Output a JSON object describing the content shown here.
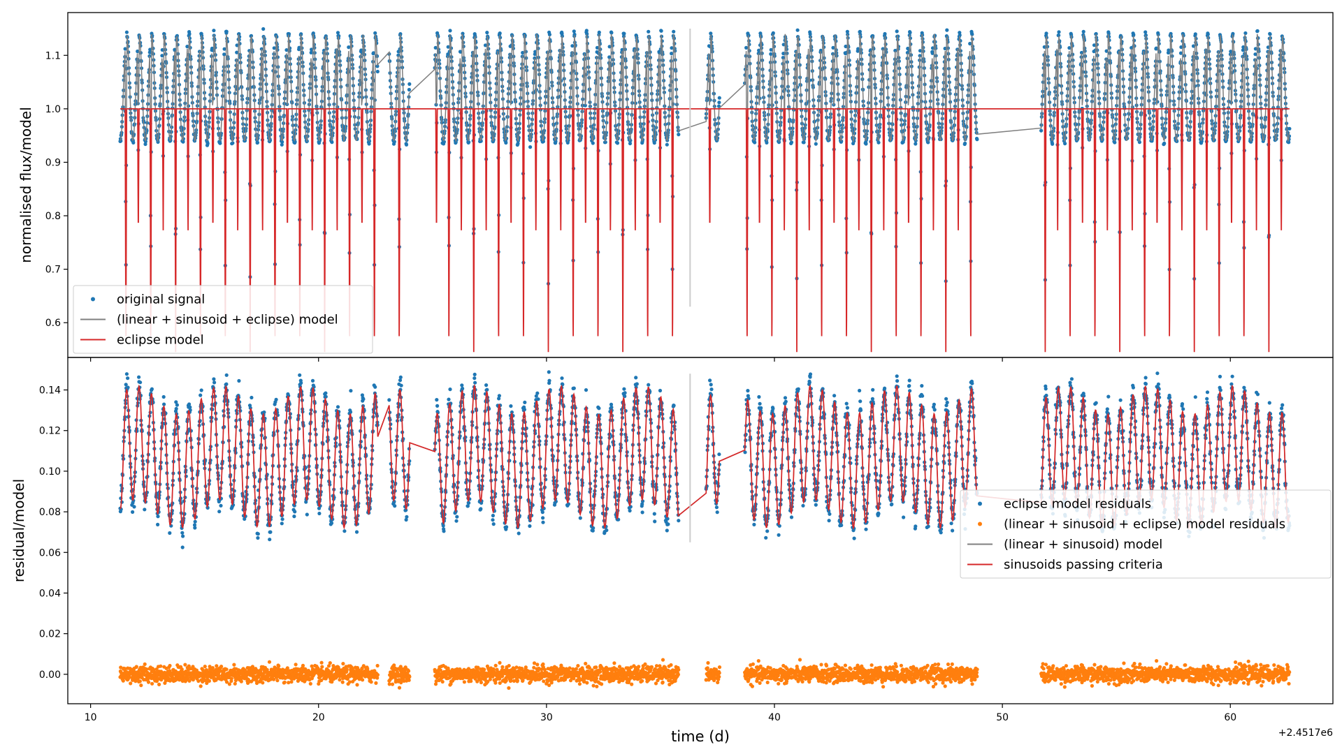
{
  "chart_data": [
    {
      "type": "line",
      "panel": "top",
      "xlabel": "",
      "ylabel": "normalised flux/model",
      "xlim": [
        9,
        64.5
      ],
      "ylim": [
        0.535,
        1.18
      ],
      "xticks": [
        10,
        20,
        30,
        40,
        50,
        60
      ],
      "xtick_labels": [
        "",
        "",
        "",
        "",
        "",
        ""
      ],
      "yticks": [
        0.6,
        0.7,
        0.8,
        0.9,
        1.0,
        1.1
      ],
      "ytick_labels": [
        "0.6",
        "0.7",
        "0.8",
        "0.9",
        "1.0",
        "1.1"
      ],
      "grid": false,
      "legend_position": "lower-left",
      "legend": [
        {
          "label": "original signal",
          "color": "#1f77b4",
          "marker": "dot"
        },
        {
          "label": "(linear + sinusoid + eclipse) model",
          "color": "#7f7f7f",
          "marker": "line"
        },
        {
          "label": "eclipse model",
          "color": "#d62728",
          "marker": "line"
        }
      ],
      "vline": {
        "x": 36.3,
        "y_range": [
          0.63,
          1.15
        ],
        "color": "#cccccc"
      },
      "segments": [
        [
          11.3,
          22.6
        ],
        [
          23.1,
          24.0
        ],
        [
          25.1,
          35.8
        ],
        [
          37.0,
          37.6
        ],
        [
          38.7,
          48.9
        ],
        [
          51.7,
          62.6
        ]
      ],
      "eclipse_period": 1.09,
      "eclipse_reference_time": 11.55,
      "secondary_eclipse_phase": 0.5,
      "primary_depth": 0.545,
      "secondary_depth": 0.765,
      "out_of_eclipse_level": 1.0,
      "signal_mean": 1.04,
      "signal_amplitude": 0.1,
      "sinusoid_period": 0.545,
      "series_colors": {
        "signal": "#1f77b4",
        "full_model": "#7f7f7f",
        "eclipse_model": "#d62728"
      }
    },
    {
      "type": "scatter",
      "panel": "bottom",
      "xlabel": "time (d)",
      "ylabel": "residual/model",
      "x_offset_label": "+2.4517e6",
      "xlim": [
        9,
        64.5
      ],
      "ylim": [
        -0.0145,
        0.156
      ],
      "xticks": [
        10,
        20,
        30,
        40,
        50,
        60
      ],
      "xtick_labels": [
        "10",
        "20",
        "30",
        "40",
        "50",
        "60"
      ],
      "yticks": [
        0.0,
        0.02,
        0.04,
        0.06,
        0.08,
        0.1,
        0.12,
        0.14
      ],
      "ytick_labels": [
        "0.00",
        "0.02",
        "0.04",
        "0.06",
        "0.08",
        "0.10",
        "0.12",
        "0.14"
      ],
      "grid": false,
      "legend_position": "center-right",
      "legend": [
        {
          "label": "eclipse model residuals",
          "color": "#1f77b4",
          "marker": "dot"
        },
        {
          "label": "(linear + sinusoid + eclipse) model residuals",
          "color": "#ff7f0e",
          "marker": "dot"
        },
        {
          "label": "(linear + sinusoid) model",
          "color": "#7f7f7f",
          "marker": "line"
        },
        {
          "label": "sinusoids passing criteria",
          "color": "#d62728",
          "marker": "line"
        }
      ],
      "vline": {
        "x": 36.3,
        "y_range": [
          0.065,
          0.148
        ],
        "color": "#cccccc"
      },
      "segments": [
        [
          11.3,
          22.6
        ],
        [
          23.1,
          24.0
        ],
        [
          25.1,
          35.8
        ],
        [
          37.0,
          37.6
        ],
        [
          38.7,
          48.9
        ],
        [
          51.7,
          62.6
        ]
      ],
      "residual_mean": 0.107,
      "residual_amplitude": 0.035,
      "residual_period": 0.545,
      "model_residual_mean": 0.0,
      "model_residual_scatter": 0.002,
      "series_colors": {
        "eclipse_residuals": "#1f77b4",
        "model_residuals": "#ff7f0e",
        "linear_sinusoid": "#7f7f7f",
        "sinusoids_passing": "#d62728"
      }
    }
  ]
}
